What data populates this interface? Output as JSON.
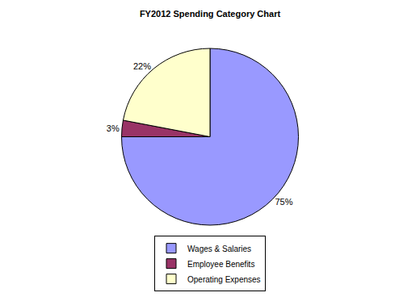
{
  "chart_data": {
    "type": "pie",
    "title": "FY2012 Spending Category Chart",
    "categories": [
      "Wages & Salaries",
      "Employee Benefits",
      "Operating Expenses"
    ],
    "values": [
      75,
      3,
      22
    ],
    "value_labels": [
      "75%",
      "3%",
      "22%"
    ],
    "colors": [
      "#9999ff",
      "#993366",
      "#ffffcc"
    ],
    "data_labels": true,
    "legend": "bottom"
  }
}
